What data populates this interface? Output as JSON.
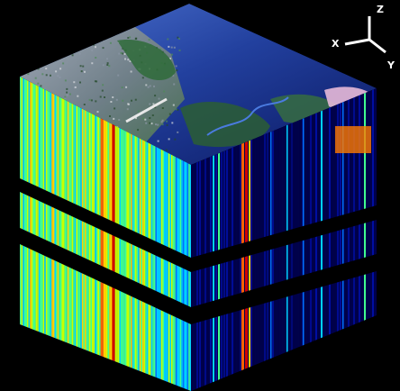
{
  "axes": {
    "x_label": "X",
    "y_label": "Y",
    "z_label": "Z",
    "color": "#ffffff"
  },
  "cube": {
    "top_face_content": "aerial-image",
    "side_faces_content": "spectral-slices",
    "colormap": [
      "#00004a",
      "#0010b0",
      "#0070ff",
      "#00d0ff",
      "#40ff90",
      "#c8ff00",
      "#ffd000",
      "#ff6000",
      "#d00000"
    ],
    "water_colors": [
      "#0b1a66",
      "#1d3aa8",
      "#5a7fd6"
    ],
    "land_colors": [
      "#234a2a",
      "#4f8a55",
      "#8d97a6",
      "#d9dbe0"
    ]
  }
}
